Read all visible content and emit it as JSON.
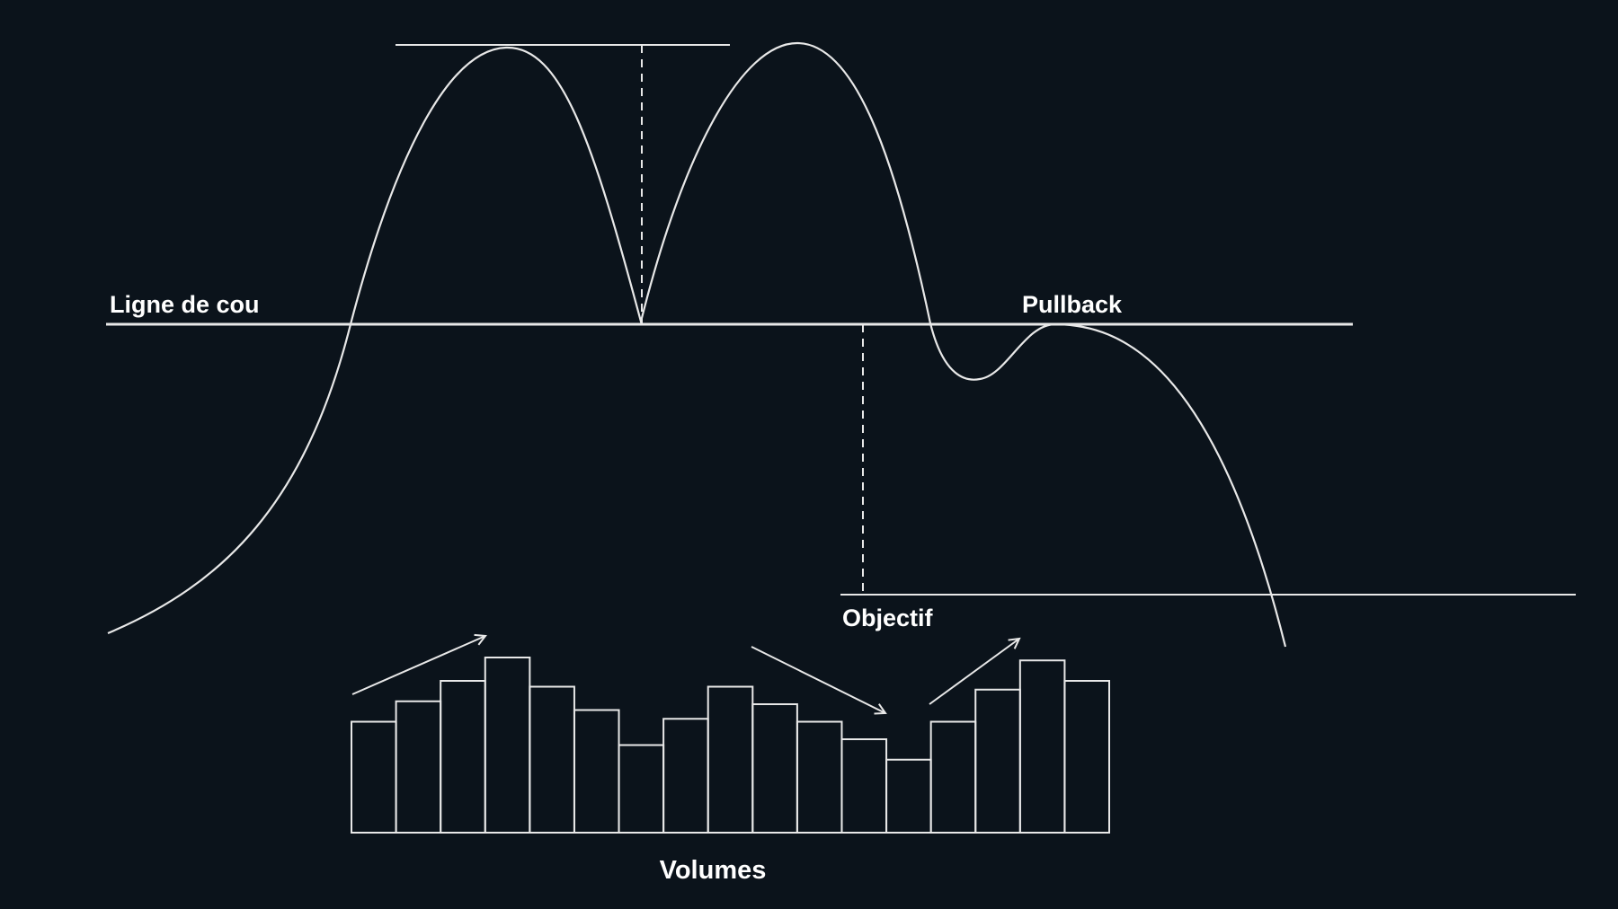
{
  "colors": {
    "background": "#0b131b",
    "stroke": "#e8e8e8",
    "text": "#ffffff"
  },
  "labels": {
    "neckline": "Ligne de cou",
    "pullback": "Pullback",
    "objective": "Objectif",
    "volumes": "Volumes"
  },
  "volume_bars": [
    0.38,
    0.45,
    0.52,
    0.6,
    0.5,
    0.42,
    0.3,
    0.39,
    0.5,
    0.44,
    0.38,
    0.32,
    0.25,
    0.38,
    0.49,
    0.59,
    0.52
  ],
  "volume_trends": [
    {
      "direction": "up",
      "icon": "arrow-up-right-icon"
    },
    {
      "direction": "down",
      "icon": "arrow-down-right-icon"
    },
    {
      "direction": "up",
      "icon": "arrow-up-right-icon"
    }
  ]
}
